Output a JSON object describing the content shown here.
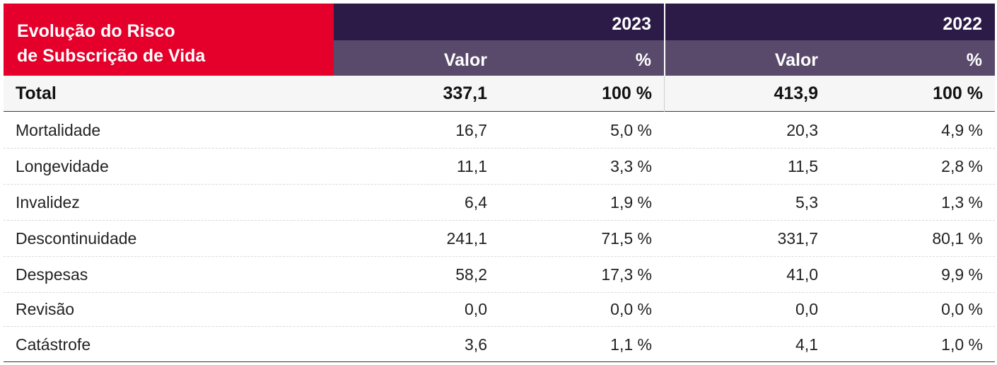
{
  "table": {
    "title_line1": "Evolução do Risco",
    "title_line2": "de Subscrição de Vida",
    "years": [
      "2023",
      "2022"
    ],
    "subheaders": [
      "Valor",
      "%",
      "Valor",
      "%"
    ],
    "total": {
      "label": "Total",
      "v2023": "337,1",
      "p2023": "100 %",
      "v2022": "413,9",
      "p2022": "100 %"
    },
    "rows": [
      {
        "label": "Mortalidade",
        "v2023": "16,7",
        "p2023": "5,0 %",
        "v2022": "20,3",
        "p2022": "4,9 %"
      },
      {
        "label": "Longevidade",
        "v2023": "11,1",
        "p2023": "3,3 %",
        "v2022": "11,5",
        "p2022": "2,8 %"
      },
      {
        "label": "Invalidez",
        "v2023": "6,4",
        "p2023": "1,9 %",
        "v2022": "5,3",
        "p2022": "1,3 %"
      },
      {
        "label": "Descontinuidade",
        "v2023": "241,1",
        "p2023": "71,5 %",
        "v2022": "331,7",
        "p2022": "80,1 %"
      },
      {
        "label": "Despesas",
        "v2023": "58,2",
        "p2023": "17,3 %",
        "v2022": "41,0",
        "p2022": "9,9 %"
      },
      {
        "label": "Revisão",
        "v2023": "0,0",
        "p2023": "0,0 %",
        "v2022": "0,0",
        "p2022": "0,0 %"
      },
      {
        "label": "Catástrofe",
        "v2023": "3,6",
        "p2023": "1,1 %",
        "v2022": "4,1",
        "p2022": "1,0 %"
      }
    ],
    "colors": {
      "title_bg": "#e4002b",
      "year_bg": "#2c1b47",
      "sub_bg": "#594a6b"
    }
  }
}
